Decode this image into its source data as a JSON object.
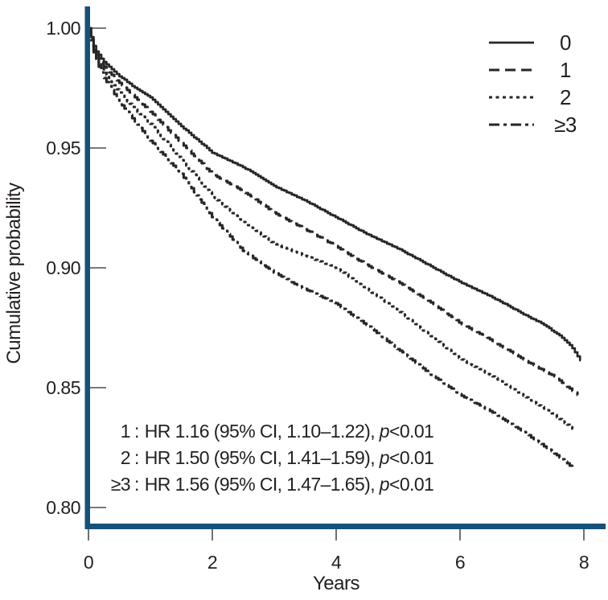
{
  "colors": {
    "axis_color": "#15517a",
    "curve_color": "#262626",
    "tick_color": "#4d4d4d",
    "text_color": "#231f20",
    "background": "#ffffff"
  },
  "chart_data": {
    "type": "line",
    "subtype": "kaplan-meier-survival",
    "title": "",
    "xlabel": "Years",
    "ylabel": "Cumulative probability",
    "xlim": [
      0,
      8.4
    ],
    "ylim": [
      0.79,
      1.005
    ],
    "x_ticks": [
      "0",
      "2",
      "4",
      "6",
      "8"
    ],
    "x_tick_values": [
      0,
      2,
      4,
      6,
      8
    ],
    "y_ticks": [
      "1.00",
      "0.95",
      "0.90",
      "0.85",
      "0.80"
    ],
    "y_tick_values": [
      1.0,
      0.95,
      0.9,
      0.85,
      0.8
    ],
    "grid": false,
    "legend_position": "top-right",
    "series": [
      {
        "name": "0",
        "style": "solid",
        "x": [
          0,
          0.1,
          0.25,
          0.5,
          0.75,
          1,
          1.5,
          2,
          2.5,
          3,
          3.5,
          4,
          4.5,
          5,
          5.5,
          6,
          6.5,
          7,
          7.3,
          7.6,
          7.8,
          7.95
        ],
        "y": [
          1.0,
          0.991,
          0.986,
          0.98,
          0.975,
          0.971,
          0.959,
          0.948,
          0.942,
          0.934,
          0.928,
          0.921,
          0.914,
          0.908,
          0.901,
          0.894,
          0.888,
          0.881,
          0.877,
          0.872,
          0.867,
          0.861
        ]
      },
      {
        "name": "1",
        "style": "dashed",
        "x": [
          0,
          0.1,
          0.25,
          0.5,
          0.75,
          1,
          1.5,
          2,
          2.5,
          3,
          3.5,
          4,
          4.5,
          5,
          5.5,
          6,
          6.5,
          7,
          7.5,
          7.9
        ],
        "y": [
          1.0,
          0.99,
          0.984,
          0.977,
          0.971,
          0.965,
          0.952,
          0.939,
          0.932,
          0.923,
          0.916,
          0.909,
          0.901,
          0.894,
          0.886,
          0.877,
          0.87,
          0.862,
          0.855,
          0.847
        ]
      },
      {
        "name": "2",
        "style": "dotted",
        "x": [
          0,
          0.1,
          0.25,
          0.5,
          0.75,
          1,
          1.5,
          2,
          2.5,
          3,
          3.5,
          4,
          4.5,
          5,
          5.5,
          6,
          6.5,
          7,
          7.5,
          7.85
        ],
        "y": [
          1.0,
          0.989,
          0.982,
          0.973,
          0.966,
          0.96,
          0.945,
          0.93,
          0.919,
          0.91,
          0.905,
          0.9,
          0.891,
          0.882,
          0.872,
          0.862,
          0.855,
          0.847,
          0.839,
          0.832
        ]
      },
      {
        "name": "≥3",
        "style": "dashdot",
        "x": [
          0,
          0.1,
          0.25,
          0.5,
          0.75,
          1,
          1.5,
          2,
          2.5,
          3,
          3.5,
          4,
          4.5,
          5,
          5.5,
          6,
          6.5,
          7,
          7.5,
          7.85
        ],
        "y": [
          1.0,
          0.988,
          0.979,
          0.969,
          0.961,
          0.953,
          0.939,
          0.921,
          0.907,
          0.898,
          0.891,
          0.885,
          0.876,
          0.866,
          0.856,
          0.847,
          0.84,
          0.832,
          0.823,
          0.816
        ]
      }
    ],
    "legend": {
      "items": [
        {
          "label": "0",
          "style": "solid"
        },
        {
          "label": "1",
          "style": "dashed"
        },
        {
          "label": "2",
          "style": "dotted"
        },
        {
          "label": "≥3",
          "style": "dashdot"
        }
      ]
    },
    "annotations": [
      {
        "label": "1",
        "colon": ":",
        "body": "HR 1.16 (95% CI, 1.10–1.22),",
        "p": "p",
        "tail": "<0.01"
      },
      {
        "label": "2",
        "colon": ":",
        "body": "HR 1.50 (95% CI, 1.41–1.59),",
        "p": "p",
        "tail": "<0.01"
      },
      {
        "label": "≥3",
        "colon": ":",
        "body": "HR 1.56 (95% CI, 1.47–1.65),",
        "p": "p",
        "tail": "<0.01"
      }
    ]
  }
}
